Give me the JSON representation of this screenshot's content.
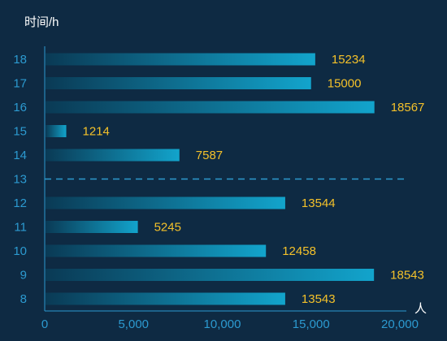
{
  "chart_data": {
    "type": "bar",
    "orientation": "horizontal",
    "y_title": "时间/h",
    "x_unit": "人",
    "categories": [
      "8",
      "9",
      "10",
      "11",
      "12",
      "13",
      "14",
      "15",
      "16",
      "17",
      "18"
    ],
    "values": [
      13543,
      18543,
      12458,
      5245,
      13544,
      null,
      7587,
      1214,
      18567,
      15000,
      15234
    ],
    "value_labels": [
      "13543",
      "18543",
      "12458",
      "5245",
      "13544",
      "",
      "7587",
      "1214",
      "18567",
      "15000",
      "15234"
    ],
    "x_ticks": [
      "0",
      "5,000",
      "10,000",
      "15,000",
      "20,000"
    ],
    "xlim": [
      0,
      20000
    ],
    "marker_line_category": "13",
    "grid": false,
    "colors": {
      "background": "#0e2a43",
      "bar_start": "#0a3a55",
      "bar_end": "#12a4cc",
      "value_label": "#f4c12a",
      "axis": "#2c9ad0",
      "title": "#ffffff"
    }
  }
}
